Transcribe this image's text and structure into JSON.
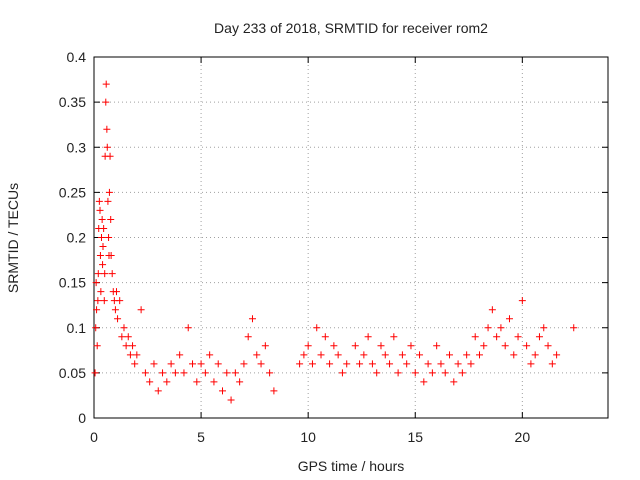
{
  "chart_data": {
    "type": "scatter",
    "title": "Day 233 of 2018, SRMTID for receiver rom2",
    "xlabel": "GPS time / hours",
    "ylabel": "SRMTID / TECUs",
    "xlim": [
      0,
      24
    ],
    "ylim": [
      0,
      0.4
    ],
    "x_ticks": [
      0,
      5,
      10,
      15,
      20
    ],
    "x_tick_labels": [
      "0",
      "5",
      "10",
      "15",
      "20"
    ],
    "y_ticks": [
      0,
      0.05,
      0.1,
      0.15,
      0.2,
      0.25,
      0.3,
      0.35,
      0.4
    ],
    "y_tick_labels": [
      "0",
      "0.05",
      "0.1",
      "0.15",
      "0.2",
      "0.25",
      "0.3",
      "0.35",
      "0.4"
    ],
    "grid": true,
    "marker": "+",
    "color": "#ff0000",
    "series": [
      {
        "name": "SRMTID",
        "points": [
          [
            0.05,
            0.05
          ],
          [
            0.08,
            0.1
          ],
          [
            0.1,
            0.15
          ],
          [
            0.12,
            0.12
          ],
          [
            0.15,
            0.08
          ],
          [
            0.18,
            0.13
          ],
          [
            0.2,
            0.16
          ],
          [
            0.22,
            0.21
          ],
          [
            0.25,
            0.24
          ],
          [
            0.28,
            0.23
          ],
          [
            0.3,
            0.18
          ],
          [
            0.32,
            0.14
          ],
          [
            0.35,
            0.2
          ],
          [
            0.38,
            0.22
          ],
          [
            0.4,
            0.17
          ],
          [
            0.42,
            0.19
          ],
          [
            0.45,
            0.21
          ],
          [
            0.48,
            0.13
          ],
          [
            0.5,
            0.16
          ],
          [
            0.52,
            0.29
          ],
          [
            0.55,
            0.35
          ],
          [
            0.57,
            0.37
          ],
          [
            0.6,
            0.32
          ],
          [
            0.62,
            0.3
          ],
          [
            0.65,
            0.24
          ],
          [
            0.68,
            0.2
          ],
          [
            0.7,
            0.18
          ],
          [
            0.72,
            0.25
          ],
          [
            0.75,
            0.29
          ],
          [
            0.78,
            0.22
          ],
          [
            0.8,
            0.18
          ],
          [
            0.85,
            0.16
          ],
          [
            0.9,
            0.14
          ],
          [
            0.95,
            0.13
          ],
          [
            1.0,
            0.12
          ],
          [
            1.05,
            0.14
          ],
          [
            1.1,
            0.11
          ],
          [
            1.2,
            0.13
          ],
          [
            1.3,
            0.09
          ],
          [
            1.4,
            0.1
          ],
          [
            1.5,
            0.08
          ],
          [
            1.6,
            0.09
          ],
          [
            1.7,
            0.07
          ],
          [
            1.8,
            0.08
          ],
          [
            1.9,
            0.06
          ],
          [
            2.0,
            0.07
          ],
          [
            2.2,
            0.12
          ],
          [
            2.4,
            0.05
          ],
          [
            2.6,
            0.04
          ],
          [
            2.8,
            0.06
          ],
          [
            3.0,
            0.03
          ],
          [
            3.2,
            0.05
          ],
          [
            3.4,
            0.04
          ],
          [
            3.6,
            0.06
          ],
          [
            3.8,
            0.05
          ],
          [
            4.0,
            0.07
          ],
          [
            4.2,
            0.05
          ],
          [
            4.4,
            0.1
          ],
          [
            4.6,
            0.06
          ],
          [
            4.8,
            0.04
          ],
          [
            5.0,
            0.06
          ],
          [
            5.2,
            0.05
          ],
          [
            5.4,
            0.07
          ],
          [
            5.6,
            0.04
          ],
          [
            5.8,
            0.06
          ],
          [
            6.0,
            0.03
          ],
          [
            6.2,
            0.05
          ],
          [
            6.4,
            0.02
          ],
          [
            6.6,
            0.05
          ],
          [
            6.8,
            0.04
          ],
          [
            7.0,
            0.06
          ],
          [
            7.2,
            0.09
          ],
          [
            7.4,
            0.11
          ],
          [
            7.6,
            0.07
          ],
          [
            7.8,
            0.06
          ],
          [
            8.0,
            0.08
          ],
          [
            8.2,
            0.05
          ],
          [
            8.4,
            0.03
          ],
          [
            9.6,
            0.06
          ],
          [
            9.8,
            0.07
          ],
          [
            10.0,
            0.08
          ],
          [
            10.2,
            0.06
          ],
          [
            10.4,
            0.1
          ],
          [
            10.6,
            0.07
          ],
          [
            10.8,
            0.09
          ],
          [
            11.0,
            0.06
          ],
          [
            11.2,
            0.08
          ],
          [
            11.4,
            0.07
          ],
          [
            11.6,
            0.05
          ],
          [
            11.8,
            0.06
          ],
          [
            12.2,
            0.08
          ],
          [
            12.4,
            0.06
          ],
          [
            12.6,
            0.07
          ],
          [
            12.8,
            0.09
          ],
          [
            13.0,
            0.06
          ],
          [
            13.2,
            0.05
          ],
          [
            13.4,
            0.08
          ],
          [
            13.6,
            0.07
          ],
          [
            13.8,
            0.06
          ],
          [
            14.0,
            0.09
          ],
          [
            14.2,
            0.05
          ],
          [
            14.4,
            0.07
          ],
          [
            14.6,
            0.06
          ],
          [
            14.8,
            0.08
          ],
          [
            15.0,
            0.05
          ],
          [
            15.2,
            0.07
          ],
          [
            15.4,
            0.04
          ],
          [
            15.6,
            0.06
          ],
          [
            15.8,
            0.05
          ],
          [
            16.0,
            0.08
          ],
          [
            16.2,
            0.06
          ],
          [
            16.4,
            0.05
          ],
          [
            16.6,
            0.07
          ],
          [
            16.8,
            0.04
          ],
          [
            17.0,
            0.06
          ],
          [
            17.2,
            0.05
          ],
          [
            17.4,
            0.07
          ],
          [
            17.6,
            0.06
          ],
          [
            17.8,
            0.09
          ],
          [
            18.0,
            0.07
          ],
          [
            18.2,
            0.08
          ],
          [
            18.4,
            0.1
          ],
          [
            18.6,
            0.12
          ],
          [
            18.8,
            0.09
          ],
          [
            19.0,
            0.1
          ],
          [
            19.2,
            0.08
          ],
          [
            19.4,
            0.11
          ],
          [
            19.6,
            0.07
          ],
          [
            19.8,
            0.09
          ],
          [
            20.0,
            0.13
          ],
          [
            20.2,
            0.08
          ],
          [
            20.4,
            0.06
          ],
          [
            20.6,
            0.07
          ],
          [
            20.8,
            0.09
          ],
          [
            21.0,
            0.1
          ],
          [
            21.2,
            0.08
          ],
          [
            21.4,
            0.06
          ],
          [
            21.6,
            0.07
          ],
          [
            22.4,
            0.1
          ]
        ]
      }
    ]
  }
}
